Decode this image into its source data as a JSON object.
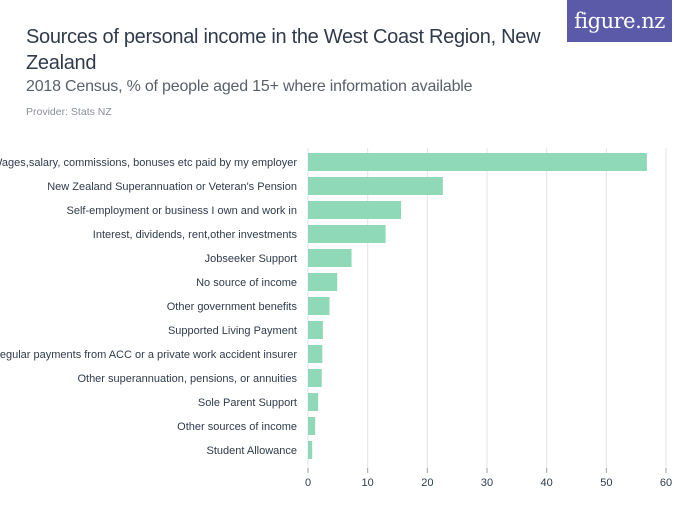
{
  "header": {
    "title": "Sources of personal income in the West Coast Region, New Zealand",
    "subtitle": "2018 Census, % of people aged 15+ where information available",
    "provider": "Provider: Stats NZ",
    "logo_text": "figure.nz"
  },
  "colors": {
    "bar": "#8fd8b8",
    "gridline": "#e2e4e8",
    "axis": "#9aa0a6",
    "logo_bg": "#5a5aa8"
  },
  "chart_data": {
    "type": "bar",
    "orientation": "horizontal",
    "categories": [
      "Wages,salary, commissions, bonuses etc paid by my employer",
      "New Zealand Superannuation or Veteran's Pension",
      "Self-employment or business I own and work in",
      "Interest, dividends, rent,other investments",
      "Jobseeker Support",
      "No source of income",
      "Other government benefits",
      "Supported Living Payment",
      "Regular payments from ACC or a private work accident insurer",
      "Other superannuation, pensions, or annuities",
      "Sole Parent Support",
      "Other sources of income",
      "Student Allowance"
    ],
    "values": [
      56.8,
      22.6,
      15.6,
      13.0,
      7.3,
      4.9,
      3.6,
      2.5,
      2.4,
      2.3,
      1.7,
      1.2,
      0.7
    ],
    "xlim": [
      0,
      60
    ],
    "xticks": [
      0,
      10,
      20,
      30,
      40,
      50,
      60
    ],
    "grid": true
  }
}
